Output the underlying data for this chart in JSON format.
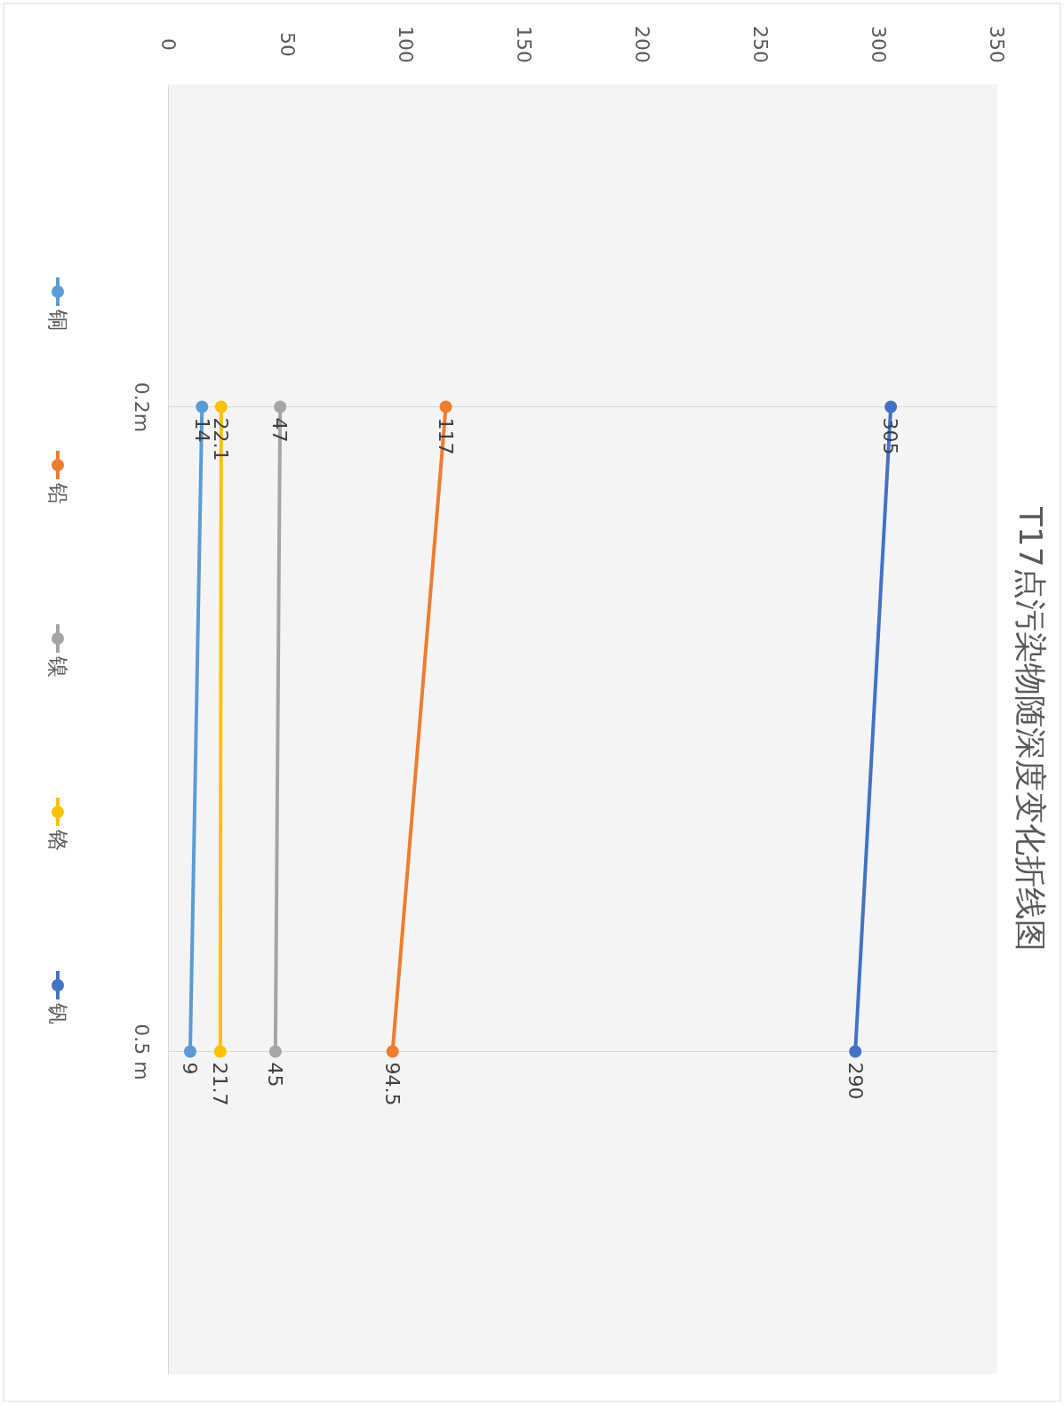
{
  "chart_data": {
    "type": "line",
    "title": "T17点污染物随深度变化折线图",
    "categories": [
      "0.2m",
      "0.5 m"
    ],
    "series": [
      {
        "name": "铜",
        "color": "#5b9bd5",
        "values": [
          14,
          9
        ]
      },
      {
        "name": "铅",
        "color": "#ed7d31",
        "values": [
          117,
          94.5
        ]
      },
      {
        "name": "镍",
        "color": "#a5a5a5",
        "values": [
          47,
          45
        ]
      },
      {
        "name": "铬",
        "color": "#ffc000",
        "values": [
          22.1,
          21.7
        ]
      },
      {
        "name": "钒",
        "color": "#4472c4",
        "values": [
          305,
          290
        ]
      }
    ],
    "orientation": "horizontal",
    "xlim": [
      0,
      350
    ],
    "xticks": [
      0,
      50,
      100,
      150,
      200,
      250,
      300,
      350
    ],
    "grid": "y",
    "legend": "left",
    "marker": "circle",
    "data_labels": true
  }
}
